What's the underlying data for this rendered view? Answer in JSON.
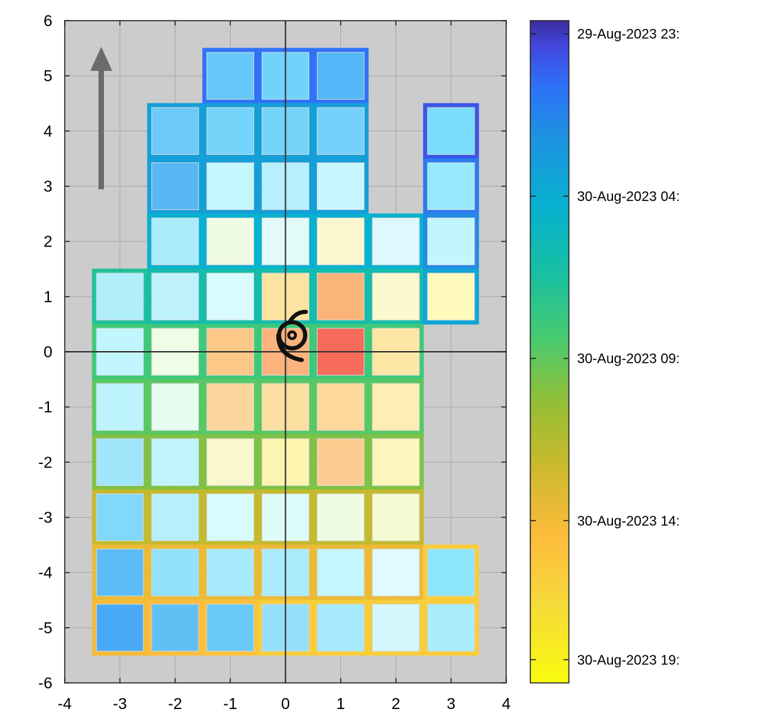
{
  "chart_data": {
    "type": "heatmap",
    "title": "",
    "xlabel": "",
    "ylabel": "",
    "xlim": [
      -4,
      4
    ],
    "ylim": [
      -6,
      6
    ],
    "grid": true,
    "background_color": "#cccccc",
    "x_ticks": [
      "-4",
      "-3",
      "-2",
      "-1",
      "0",
      "1",
      "2",
      "3",
      "4"
    ],
    "y_ticks": [
      "-6",
      "-5",
      "-4",
      "-3",
      "-2",
      "-1",
      "0",
      "1",
      "2",
      "3",
      "4",
      "5",
      "6"
    ],
    "colorbar": {
      "colormap": "parula",
      "orientation": "reversed",
      "tick_labels": [
        "29-Aug-2023 23:",
        "30-Aug-2023 04:",
        "30-Aug-2023 09:",
        "30-Aug-2023 14:",
        "30-Aug-2023 19:"
      ],
      "tick_fractions": [
        0.02,
        0.265,
        0.51,
        0.755,
        0.965
      ]
    },
    "cells_note_fields": [
      "x",
      "y",
      "fill",
      "time"
    ],
    "cells": [
      {
        "x": -1,
        "y": 5,
        "fill": "#66c8f8",
        "time": 0.1
      },
      {
        "x": 0,
        "y": 5,
        "fill": "#70d4fa",
        "time": 0.1
      },
      {
        "x": 1,
        "y": 5,
        "fill": "#52b8f8",
        "time": 0.1
      },
      {
        "x": -2,
        "y": 4,
        "fill": "#6ccaf8",
        "time": 0.22
      },
      {
        "x": -1,
        "y": 4,
        "fill": "#74d4fa",
        "time": 0.22
      },
      {
        "x": 0,
        "y": 4,
        "fill": "#74d4fa",
        "time": 0.22
      },
      {
        "x": 1,
        "y": 4,
        "fill": "#74d2fa",
        "time": 0.22
      },
      {
        "x": 3,
        "y": 4,
        "fill": "#7adcfb",
        "time": 0.06
      },
      {
        "x": -2,
        "y": 3,
        "fill": "#58b8f4",
        "time": 0.22
      },
      {
        "x": -1,
        "y": 3,
        "fill": "#c4f6fe",
        "time": 0.22
      },
      {
        "x": 0,
        "y": 3,
        "fill": "#b6f0fd",
        "time": 0.22
      },
      {
        "x": 1,
        "y": 3,
        "fill": "#c8f6fe",
        "time": 0.22
      },
      {
        "x": 3,
        "y": 3,
        "fill": "#96eafc",
        "time": 0.12
      },
      {
        "x": -2,
        "y": 2,
        "fill": "#aaecfb",
        "time": 0.28
      },
      {
        "x": -1,
        "y": 2,
        "fill": "#f0fbe4",
        "time": 0.28
      },
      {
        "x": 0,
        "y": 2,
        "fill": "#e2fbf8",
        "time": 0.28
      },
      {
        "x": 1,
        "y": 2,
        "fill": "#fbf8d0",
        "time": 0.28
      },
      {
        "x": 2,
        "y": 2,
        "fill": "#ddf8fe",
        "time": 0.28
      },
      {
        "x": 3,
        "y": 2,
        "fill": "#c2f6fe",
        "time": 0.16
      },
      {
        "x": -3,
        "y": 1,
        "fill": "#b0eefc",
        "time": 0.4
      },
      {
        "x": -2,
        "y": 1,
        "fill": "#bef3fd",
        "time": 0.36
      },
      {
        "x": -1,
        "y": 1,
        "fill": "#d8fbfe",
        "time": 0.36
      },
      {
        "x": 0,
        "y": 1,
        "fill": "#fce3a0",
        "time": 0.36
      },
      {
        "x": 1,
        "y": 1,
        "fill": "#fbb478",
        "time": 0.36
      },
      {
        "x": 2,
        "y": 1,
        "fill": "#fbf8ce",
        "time": 0.36
      },
      {
        "x": 3,
        "y": 1,
        "fill": "#fdfabc",
        "time": 0.24
      },
      {
        "x": -3,
        "y": 0,
        "fill": "#c2f6fe",
        "time": 0.46
      },
      {
        "x": -2,
        "y": 0,
        "fill": "#effce6",
        "time": 0.46
      },
      {
        "x": -1,
        "y": 0,
        "fill": "#fbc888",
        "time": 0.46
      },
      {
        "x": 0,
        "y": 0,
        "fill": "#fbb27c",
        "time": 0.46
      },
      {
        "x": 1,
        "y": 0,
        "fill": "#f86a5a",
        "time": 0.46
      },
      {
        "x": 2,
        "y": 0,
        "fill": "#fde6a4",
        "time": 0.46
      },
      {
        "x": -3,
        "y": -1,
        "fill": "#bcf3fd",
        "time": 0.5
      },
      {
        "x": -2,
        "y": -1,
        "fill": "#e6fcf1",
        "time": 0.5
      },
      {
        "x": -1,
        "y": -1,
        "fill": "#fcd69c",
        "time": 0.5
      },
      {
        "x": 0,
        "y": -1,
        "fill": "#fce0a2",
        "time": 0.5
      },
      {
        "x": 1,
        "y": -1,
        "fill": "#fcd89c",
        "time": 0.5
      },
      {
        "x": 2,
        "y": -1,
        "fill": "#fdeeb4",
        "time": 0.5
      },
      {
        "x": -3,
        "y": -2,
        "fill": "#a0e6fb",
        "time": 0.55
      },
      {
        "x": -2,
        "y": -2,
        "fill": "#c0f4fd",
        "time": 0.55
      },
      {
        "x": -1,
        "y": -2,
        "fill": "#f8f8cc",
        "time": 0.55
      },
      {
        "x": 0,
        "y": -2,
        "fill": "#fdf4b0",
        "time": 0.55
      },
      {
        "x": 1,
        "y": -2,
        "fill": "#fbcc90",
        "time": 0.55
      },
      {
        "x": 2,
        "y": -2,
        "fill": "#fdf6bc",
        "time": 0.55
      },
      {
        "x": -3,
        "y": -3,
        "fill": "#82d8fa",
        "time": 0.66
      },
      {
        "x": -2,
        "y": -3,
        "fill": "#b6f0fd",
        "time": 0.66
      },
      {
        "x": -1,
        "y": -3,
        "fill": "#d8fbfe",
        "time": 0.66
      },
      {
        "x": 0,
        "y": -3,
        "fill": "#ddfbf8",
        "time": 0.66
      },
      {
        "x": 1,
        "y": -3,
        "fill": "#effbe2",
        "time": 0.66
      },
      {
        "x": 2,
        "y": -3,
        "fill": "#f6fad2",
        "time": 0.66
      },
      {
        "x": -3,
        "y": -4,
        "fill": "#5cbcf6",
        "time": 0.74
      },
      {
        "x": -2,
        "y": -4,
        "fill": "#92e2fb",
        "time": 0.74
      },
      {
        "x": -1,
        "y": -4,
        "fill": "#a6eafc",
        "time": 0.74
      },
      {
        "x": 0,
        "y": -4,
        "fill": "#aaecfb",
        "time": 0.74
      },
      {
        "x": 1,
        "y": -4,
        "fill": "#c4f6fe",
        "time": 0.74
      },
      {
        "x": 2,
        "y": -4,
        "fill": "#e0faff",
        "time": 0.74
      },
      {
        "x": 3,
        "y": -4,
        "fill": "#8ee6fb",
        "time": 0.84
      },
      {
        "x": -3,
        "y": -5,
        "fill": "#48aaf6",
        "time": 0.76
      },
      {
        "x": -2,
        "y": -5,
        "fill": "#60c0f6",
        "time": 0.78
      },
      {
        "x": -1,
        "y": -5,
        "fill": "#68c8f8",
        "time": 0.8
      },
      {
        "x": 0,
        "y": -5,
        "fill": "#94e0fb",
        "time": 0.84
      },
      {
        "x": 1,
        "y": -5,
        "fill": "#a6eafc",
        "time": 0.84
      },
      {
        "x": 2,
        "y": -5,
        "fill": "#d2f8fe",
        "time": 0.84
      },
      {
        "x": 3,
        "y": -5,
        "fill": "#aaedfc",
        "time": 0.84
      }
    ],
    "storm_center": {
      "x": 0.12,
      "y": 0.3
    }
  },
  "icons": {
    "arrow": "north-arrow-icon",
    "storm": "hurricane-icon"
  }
}
